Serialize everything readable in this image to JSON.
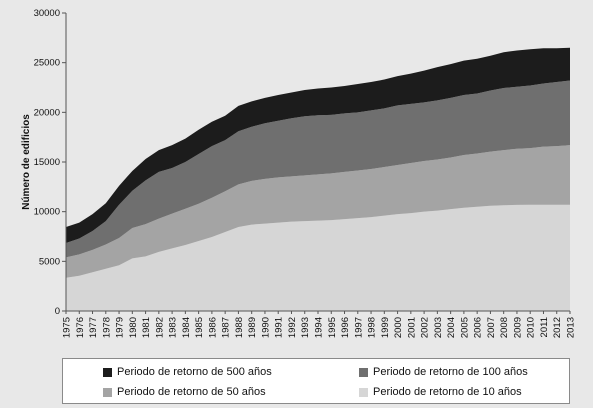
{
  "chart_data": {
    "type": "area",
    "stacked": true,
    "ylabel": "Número de edificios",
    "xlabel": "",
    "ylim": [
      0,
      30000
    ],
    "yticks": [
      0,
      5000,
      10000,
      15000,
      20000,
      25000,
      30000
    ],
    "grid": false,
    "legend_position": "bottom",
    "x": [
      "1975",
      "1976",
      "1977",
      "1978",
      "1979",
      "1980",
      "1981",
      "1982",
      "1983",
      "1984",
      "1985",
      "1986",
      "1987",
      "1988",
      "1989",
      "1990",
      "1991",
      "1992",
      "1993",
      "1994",
      "1995",
      "1996",
      "1997",
      "1998",
      "1999",
      "2000",
      "2001",
      "2002",
      "2003",
      "2004",
      "2005",
      "2006",
      "2007",
      "2008",
      "2009",
      "2010",
      "2011",
      "2012",
      "2013"
    ],
    "series": [
      {
        "name": "Periodo de retorno de 10 años",
        "color": "#d6d6d6",
        "values": [
          3350,
          3550,
          3900,
          4250,
          4600,
          5300,
          5500,
          5950,
          6300,
          6650,
          7050,
          7450,
          7950,
          8450,
          8700,
          8800,
          8900,
          9000,
          9050,
          9100,
          9150,
          9250,
          9350,
          9450,
          9600,
          9750,
          9850,
          10000,
          10100,
          10250,
          10400,
          10500,
          10600,
          10650,
          10680,
          10700,
          10700,
          10700,
          10700
        ]
      },
      {
        "name": "Periodo de retorno de 50 años",
        "color": "#a4a4a4",
        "values": [
          2050,
          2150,
          2250,
          2450,
          2750,
          3050,
          3250,
          3350,
          3500,
          3650,
          3750,
          3950,
          4100,
          4300,
          4400,
          4500,
          4550,
          4550,
          4600,
          4650,
          4700,
          4750,
          4800,
          4850,
          4900,
          4950,
          5050,
          5100,
          5150,
          5200,
          5300,
          5350,
          5450,
          5550,
          5650,
          5700,
          5850,
          5900,
          6000
        ]
      },
      {
        "name": "Periodo de retorno de 100 años",
        "color": "#6f6f6f",
        "values": [
          1450,
          1600,
          1900,
          2350,
          3350,
          3750,
          4400,
          4700,
          4600,
          4700,
          5000,
          5200,
          5150,
          5350,
          5450,
          5600,
          5700,
          5850,
          5950,
          5950,
          5900,
          5900,
          5850,
          5900,
          5900,
          6000,
          5950,
          5900,
          5950,
          6000,
          6050,
          6050,
          6150,
          6250,
          6250,
          6300,
          6350,
          6450,
          6500
        ]
      },
      {
        "name": "Periodo de retorno de 500 años",
        "color": "#1c1c1c",
        "values": [
          1600,
          1600,
          1700,
          1800,
          1900,
          2000,
          2150,
          2200,
          2300,
          2350,
          2450,
          2450,
          2450,
          2550,
          2550,
          2550,
          2600,
          2600,
          2650,
          2700,
          2750,
          2750,
          2850,
          2850,
          2900,
          2950,
          3050,
          3200,
          3350,
          3400,
          3450,
          3500,
          3500,
          3600,
          3650,
          3650,
          3550,
          3400,
          3300
        ]
      }
    ]
  },
  "legend": [
    {
      "label": "Periodo de retorno de 500 años",
      "color": "#1c1c1c"
    },
    {
      "label": "Periodo de retorno de 100 años",
      "color": "#6f6f6f"
    },
    {
      "label": "Periodo de retorno de 50 años",
      "color": "#a4a4a4"
    },
    {
      "label": "Periodo de retorno de 10 años",
      "color": "#d6d6d6"
    }
  ]
}
